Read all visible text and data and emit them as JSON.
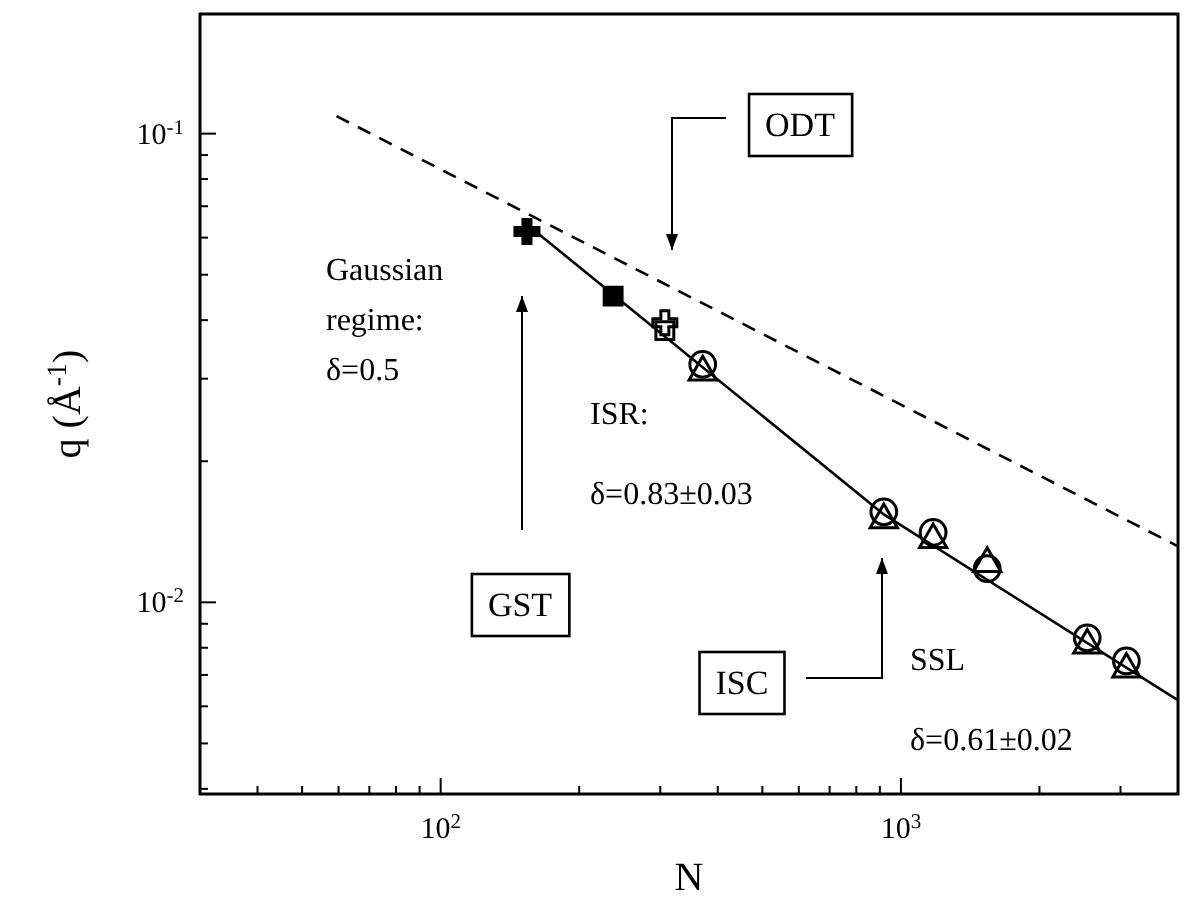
{
  "chart_data": {
    "type": "scatter",
    "log": "xy",
    "xlabel": "N",
    "ylabel": "q (Å$^{-1}$)",
    "xlim": [
      30,
      4000
    ],
    "ylim": [
      0.0039,
      0.18
    ],
    "xticks": [
      {
        "value": 40,
        "label": null
      },
      {
        "value": 50,
        "label": null
      },
      {
        "value": 60,
        "label": null
      },
      {
        "value": 70,
        "label": null
      },
      {
        "value": 80,
        "label": null
      },
      {
        "value": 90,
        "label": null
      },
      {
        "value": 100,
        "label": "10$^{2}$"
      },
      {
        "value": 200,
        "label": null
      },
      {
        "value": 300,
        "label": null
      },
      {
        "value": 400,
        "label": null
      },
      {
        "value": 500,
        "label": null
      },
      {
        "value": 600,
        "label": null
      },
      {
        "value": 700,
        "label": null
      },
      {
        "value": 800,
        "label": null
      },
      {
        "value": 900,
        "label": null
      },
      {
        "value": 1000,
        "label": "10$^{3}$"
      },
      {
        "value": 2000,
        "label": null
      },
      {
        "value": 3000,
        "label": null
      },
      {
        "value": 4000,
        "label": null
      }
    ],
    "yticks": [
      {
        "value": 0.004,
        "label": null
      },
      {
        "value": 0.005,
        "label": null
      },
      {
        "value": 0.006,
        "label": null
      },
      {
        "value": 0.007,
        "label": null
      },
      {
        "value": 0.008,
        "label": null
      },
      {
        "value": 0.009,
        "label": null
      },
      {
        "value": 0.01,
        "label": "10$^{-2}$"
      },
      {
        "value": 0.02,
        "label": null
      },
      {
        "value": 0.03,
        "label": null
      },
      {
        "value": 0.04,
        "label": null
      },
      {
        "value": 0.05,
        "label": null
      },
      {
        "value": 0.06,
        "label": null
      },
      {
        "value": 0.07,
        "label": null
      },
      {
        "value": 0.08,
        "label": null
      },
      {
        "value": 0.09,
        "label": null
      },
      {
        "value": 0.1,
        "label": "10$^{-1}$"
      }
    ],
    "grid": false,
    "series": [
      {
        "marker": "circle",
        "color": "#000000",
        "x": [
          371,
          918,
          1175,
          1540,
          2540,
          3090
        ],
        "values": [
          0.0322,
          0.0156,
          0.0141,
          0.0118,
          0.0084,
          0.0075
        ]
      },
      {
        "marker": "triangle",
        "color": "#000000",
        "x": [
          371,
          918,
          1175,
          1540,
          2540,
          3090
        ],
        "values": [
          0.031,
          0.015,
          0.0136,
          0.0121,
          0.0081,
          0.0072
        ]
      },
      {
        "marker": "square",
        "color": "#000000",
        "x": [
          237,
          307
        ],
        "values": [
          0.045,
          0.038
        ]
      },
      {
        "marker": "cross",
        "color": "#000000",
        "x": [
          154,
          307
        ],
        "values": [
          0.0618,
          0.0395
        ]
      },
      {
        "type": "line",
        "line_style": "solid",
        "color": "#000000",
        "x": [
          154,
          918,
          3980
        ],
        "values": [
          0.064,
          0.0154,
          0.0062
        ]
      },
      {
        "type": "line",
        "line_style": "dashed",
        "color": "#000000",
        "x": [
          59.4,
          3980
        ],
        "values": [
          0.109,
          0.0132
        ]
      }
    ],
    "annotations": [
      "ODT",
      "GST",
      "ISC",
      "Gaussian",
      "regime:",
      "δ=0.5",
      "ISR:",
      "δ=0.83±0.03",
      "SSL",
      "δ=0.61±0.02"
    ]
  }
}
